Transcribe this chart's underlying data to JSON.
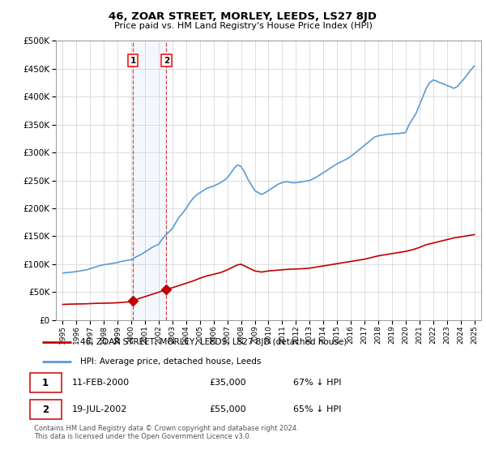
{
  "title": "46, ZOAR STREET, MORLEY, LEEDS, LS27 8JD",
  "subtitle": "Price paid vs. HM Land Registry's House Price Index (HPI)",
  "legend_line1": "46, ZOAR STREET, MORLEY, LEEDS, LS27 8JD (detached house)",
  "legend_line2": "HPI: Average price, detached house, Leeds",
  "sale1_date": 2000.11,
  "sale1_price": 35000,
  "sale2_date": 2002.55,
  "sale2_price": 55000,
  "sale1_text": "11-FEB-2000",
  "sale1_amount": "£35,000",
  "sale1_hpi": "67% ↓ HPI",
  "sale2_text": "19-JUL-2002",
  "sale2_amount": "£55,000",
  "sale2_hpi": "65% ↓ HPI",
  "footer": "Contains HM Land Registry data © Crown copyright and database right 2024.\nThis data is licensed under the Open Government Licence v3.0.",
  "hpi_color": "#5b9bd5",
  "sale_color": "#c00000",
  "ylim_min": 0,
  "ylim_max": 500000,
  "xlim_min": 1994.5,
  "xlim_max": 2025.5,
  "hpi_years": [
    1995.0,
    1995.25,
    1995.5,
    1995.75,
    1996.0,
    1996.25,
    1996.5,
    1996.75,
    1997.0,
    1997.25,
    1997.5,
    1997.75,
    1998.0,
    1998.25,
    1998.5,
    1998.75,
    1999.0,
    1999.25,
    1999.5,
    1999.75,
    2000.0,
    2000.25,
    2000.5,
    2000.75,
    2001.0,
    2001.25,
    2001.5,
    2001.75,
    2002.0,
    2002.25,
    2002.5,
    2002.75,
    2003.0,
    2003.25,
    2003.5,
    2003.75,
    2004.0,
    2004.25,
    2004.5,
    2004.75,
    2005.0,
    2005.25,
    2005.5,
    2005.75,
    2006.0,
    2006.25,
    2006.5,
    2006.75,
    2007.0,
    2007.25,
    2007.5,
    2007.75,
    2008.0,
    2008.25,
    2008.5,
    2008.75,
    2009.0,
    2009.25,
    2009.5,
    2009.75,
    2010.0,
    2010.25,
    2010.5,
    2010.75,
    2011.0,
    2011.25,
    2011.5,
    2011.75,
    2012.0,
    2012.25,
    2012.5,
    2012.75,
    2013.0,
    2013.25,
    2013.5,
    2013.75,
    2014.0,
    2014.25,
    2014.5,
    2014.75,
    2015.0,
    2015.25,
    2015.5,
    2015.75,
    2016.0,
    2016.25,
    2016.5,
    2016.75,
    2017.0,
    2017.25,
    2017.5,
    2017.75,
    2018.0,
    2018.25,
    2018.5,
    2018.75,
    2019.0,
    2019.25,
    2019.5,
    2019.75,
    2020.0,
    2020.25,
    2020.5,
    2020.75,
    2021.0,
    2021.25,
    2021.5,
    2021.75,
    2022.0,
    2022.25,
    2022.5,
    2022.75,
    2023.0,
    2023.25,
    2023.5,
    2023.75,
    2024.0,
    2024.25,
    2024.5,
    2024.75,
    2025.0
  ],
  "hpi_values": [
    84000,
    85000,
    85500,
    86000,
    87000,
    88000,
    89000,
    90000,
    92000,
    94000,
    96000,
    98000,
    99000,
    100000,
    101000,
    102000,
    103000,
    105000,
    106000,
    107000,
    108000,
    112000,
    115000,
    118000,
    122000,
    126000,
    130000,
    133000,
    136000,
    145000,
    152000,
    158000,
    164000,
    175000,
    185000,
    192000,
    200000,
    210000,
    218000,
    224000,
    228000,
    232000,
    236000,
    238000,
    240000,
    243000,
    246000,
    250000,
    255000,
    263000,
    272000,
    278000,
    275000,
    265000,
    252000,
    242000,
    232000,
    228000,
    225000,
    228000,
    232000,
    236000,
    240000,
    244000,
    246000,
    248000,
    247000,
    246000,
    246000,
    247000,
    248000,
    249000,
    250000,
    253000,
    256000,
    260000,
    264000,
    268000,
    272000,
    276000,
    280000,
    283000,
    286000,
    289000,
    293000,
    298000,
    303000,
    308000,
    313000,
    318000,
    323000,
    328000,
    330000,
    331000,
    332000,
    333000,
    333000,
    334000,
    334000,
    335000,
    336000,
    350000,
    360000,
    370000,
    385000,
    400000,
    415000,
    425000,
    430000,
    428000,
    425000,
    423000,
    420000,
    418000,
    415000,
    418000,
    425000,
    432000,
    440000,
    448000,
    455000
  ],
  "red_years": [
    1995.0,
    1995.5,
    1996.0,
    1996.5,
    1997.0,
    1997.5,
    1998.0,
    1998.5,
    1999.0,
    1999.5,
    2000.0,
    2000.11,
    2000.5,
    2001.0,
    2001.5,
    2002.0,
    2002.55,
    2003.0,
    2003.5,
    2004.0,
    2004.5,
    2005.0,
    2005.5,
    2006.0,
    2006.5,
    2007.0,
    2007.25,
    2007.5,
    2007.75,
    2008.0,
    2008.25,
    2008.5,
    2008.75,
    2009.0,
    2009.25,
    2009.5,
    2009.75,
    2010.0,
    2010.5,
    2011.0,
    2011.5,
    2012.0,
    2012.5,
    2013.0,
    2013.5,
    2014.0,
    2014.5,
    2015.0,
    2015.5,
    2016.0,
    2016.5,
    2017.0,
    2017.5,
    2018.0,
    2018.5,
    2019.0,
    2019.5,
    2020.0,
    2020.5,
    2021.0,
    2021.5,
    2022.0,
    2022.5,
    2023.0,
    2023.5,
    2024.0,
    2024.5,
    2025.0
  ],
  "red_values": [
    28000,
    28500,
    28800,
    29000,
    29500,
    30000,
    30200,
    30500,
    31000,
    32000,
    33000,
    35000,
    38000,
    42000,
    46000,
    50000,
    55000,
    58000,
    62000,
    66000,
    70000,
    75000,
    79000,
    82000,
    85000,
    90000,
    93000,
    96000,
    99000,
    100000,
    97000,
    94000,
    91000,
    88000,
    87000,
    86000,
    87000,
    88000,
    89000,
    90000,
    91000,
    91500,
    92000,
    93000,
    95000,
    97000,
    99000,
    101000,
    103000,
    105000,
    107000,
    109000,
    112000,
    115000,
    117000,
    119000,
    121000,
    123000,
    126000,
    130000,
    135000,
    138000,
    141000,
    144000,
    147000,
    149000,
    151000,
    153000
  ]
}
